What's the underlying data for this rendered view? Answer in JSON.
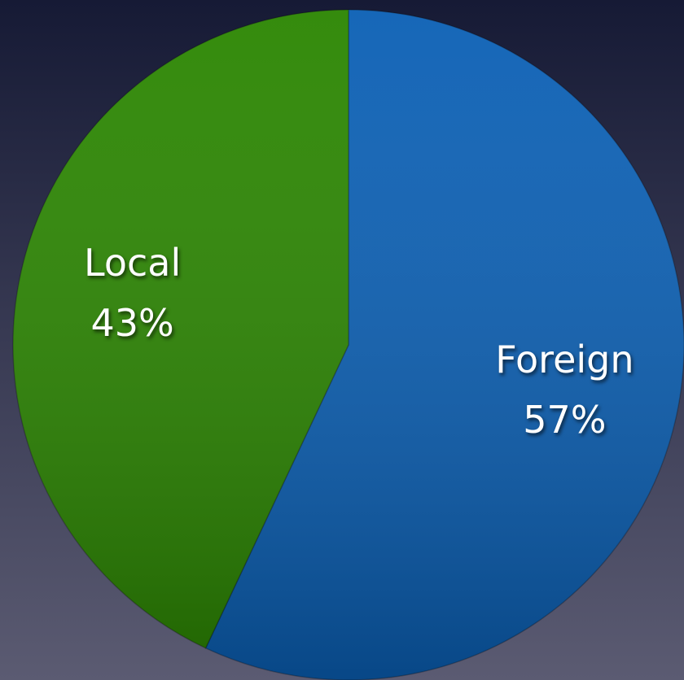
{
  "chart_data": {
    "type": "pie",
    "categories": [
      "Foreign",
      "Local"
    ],
    "values": [
      57,
      43
    ],
    "value_labels": [
      "57%",
      "43%"
    ],
    "colors": [
      "#0a5fb4",
      "#2a8500"
    ]
  }
}
